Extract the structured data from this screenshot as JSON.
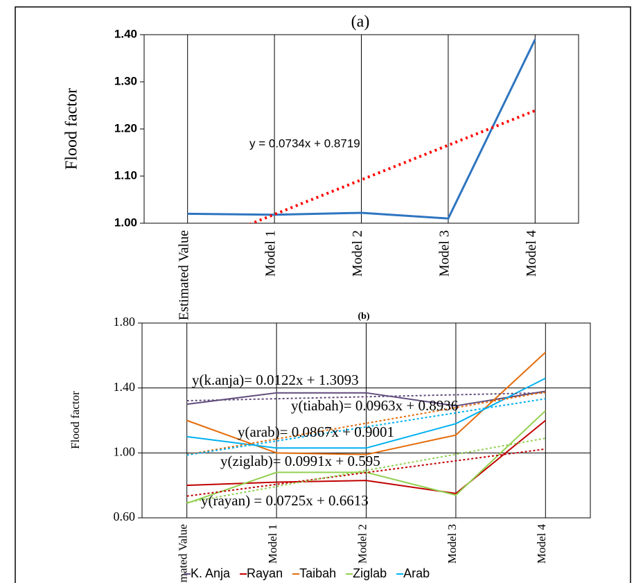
{
  "chart_data": [
    {
      "type": "line",
      "title": "(a)",
      "y_label": "Flood factor",
      "categories": [
        "Estimated Value",
        "Model 1",
        "Model 2",
        "Model 3",
        "Model 4"
      ],
      "values": [
        1.02,
        1.018,
        1.022,
        1.01,
        1.39
      ],
      "color": "#2e75c0",
      "trendline": {
        "slope": 0.0734,
        "intercept": 0.8719,
        "label": "y = 0.0734x + 0.8719",
        "color": "#ff0000"
      },
      "ylim": [
        1.0,
        1.4
      ],
      "yticks": [
        {
          "value": 1.0,
          "label": "1.00"
        },
        {
          "value": 1.1,
          "label": "1.10"
        },
        {
          "value": 1.2,
          "label": "1.20"
        },
        {
          "value": 1.3,
          "label": "1.30"
        },
        {
          "value": 1.4,
          "label": "1.40"
        }
      ],
      "grid": false
    },
    {
      "type": "line",
      "title": "(b)",
      "y_label": "Flood factor",
      "categories": [
        "Estimated Value",
        "Model 1",
        "Model 2",
        "Model 3",
        "Model 4"
      ],
      "series": [
        {
          "name": "K. Anja",
          "color": "#604a7b",
          "values": [
            1.3,
            1.37,
            1.37,
            1.29,
            1.38
          ],
          "trendline": {
            "slope": 0.0122,
            "intercept": 1.3093,
            "label": "y(k.anja)= 0.0122x + 1.3093"
          }
        },
        {
          "name": "Rayan",
          "color": "#c00000",
          "values": [
            0.8,
            0.82,
            0.83,
            0.75,
            1.2
          ],
          "trendline": {
            "slope": 0.0725,
            "intercept": 0.6613,
            "label": "y(rayan) = 0.0725x + 0.6613"
          }
        },
        {
          "name": "Taibah",
          "color": "#e46c0a",
          "values": [
            1.2,
            1.0,
            0.99,
            1.11,
            1.62
          ],
          "trendline": {
            "slope": 0.0963,
            "intercept": 0.8936,
            "label": "y(tiabah)= 0.0963x + 0.8936"
          }
        },
        {
          "name": "Ziglab",
          "color": "#92d050",
          "values": [
            0.69,
            0.88,
            0.88,
            0.74,
            1.26
          ],
          "trendline": {
            "slope": 0.0991,
            "intercept": 0.595,
            "label": "y(ziglab)= 0.0991x + 0.595"
          }
        },
        {
          "name": "Arab",
          "color": "#00b0f0",
          "values": [
            1.1,
            1.03,
            1.03,
            1.18,
            1.46
          ],
          "trendline": {
            "slope": 0.0867,
            "intercept": 0.9001,
            "label": "y(arab)= 0.0867x + 0.9001"
          }
        }
      ],
      "ylim": [
        0.6,
        1.8
      ],
      "yticks": [
        {
          "value": 0.6,
          "label": "0.60"
        },
        {
          "value": 1.0,
          "label": "1.00"
        },
        {
          "value": 1.4,
          "label": "1.40"
        },
        {
          "value": 1.8,
          "label": "1.80"
        }
      ],
      "grid": true,
      "legend": "bottom"
    }
  ]
}
